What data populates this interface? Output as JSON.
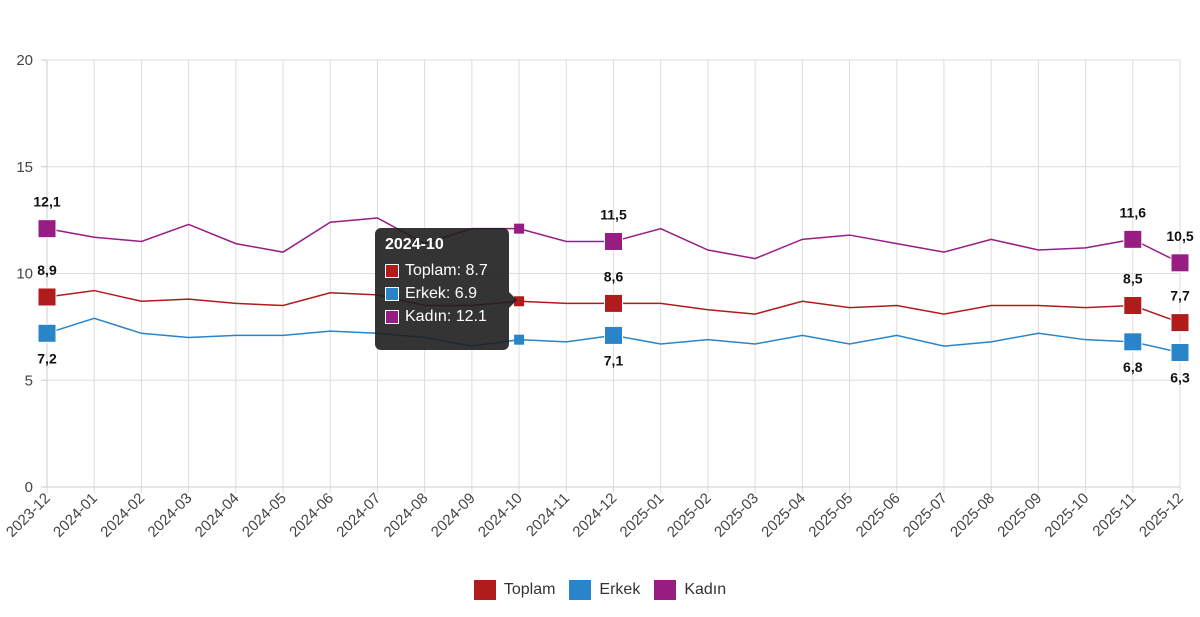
{
  "chart_data": {
    "type": "line",
    "title": "",
    "xlabel": "",
    "ylabel": "",
    "ylim": [
      0,
      20
    ],
    "yticks": [
      "0",
      "5",
      "10",
      "15",
      "20"
    ],
    "grid": true,
    "legend_position": "bottom",
    "categories": [
      "2023-12",
      "2024-01",
      "2024-02",
      "2024-03",
      "2024-04",
      "2024-05",
      "2024-06",
      "2024-07",
      "2024-08",
      "2024-09",
      "2024-10",
      "2024-11",
      "2024-12",
      "2025-01",
      "2025-02",
      "2025-03",
      "2025-04",
      "2025-05",
      "2025-06",
      "2025-07",
      "2025-08",
      "2025-09",
      "2025-10",
      "2025-11",
      "2025-12"
    ],
    "series": [
      {
        "name": "Toplam",
        "color": "#b01c1c",
        "values": [
          8.9,
          9.2,
          8.7,
          8.8,
          8.6,
          8.5,
          9.1,
          9.0,
          8.5,
          8.5,
          8.7,
          8.6,
          8.6,
          8.6,
          8.3,
          8.1,
          8.7,
          8.4,
          8.5,
          8.1,
          8.5,
          8.5,
          8.4,
          8.5,
          7.7
        ]
      },
      {
        "name": "Erkek",
        "color": "#2a84c9",
        "values": [
          7.2,
          7.9,
          7.2,
          7.0,
          7.1,
          7.1,
          7.3,
          7.2,
          7.0,
          6.6,
          6.9,
          6.8,
          7.1,
          6.7,
          6.9,
          6.7,
          7.1,
          6.7,
          7.1,
          6.6,
          6.8,
          7.2,
          6.9,
          6.8,
          6.3
        ]
      },
      {
        "name": "Kadın",
        "color": "#981d82",
        "values": [
          12.1,
          11.7,
          11.5,
          12.3,
          11.4,
          11.0,
          12.4,
          12.6,
          11.4,
          12.1,
          12.1,
          11.5,
          11.5,
          12.1,
          11.1,
          10.7,
          11.6,
          11.8,
          11.4,
          11.0,
          11.6,
          11.1,
          11.2,
          11.6,
          10.5
        ]
      }
    ],
    "labeled_indices": [
      0,
      12,
      23,
      24
    ],
    "data_labels": {
      "Toplam": {
        "0": "8,9",
        "12": "8,6",
        "23": "8,5",
        "24": "7,7"
      },
      "Erkek": {
        "0": "7,2",
        "12": "7,1",
        "23": "6,8",
        "24": "6,3"
      },
      "Kadın": {
        "0": "12,1",
        "12": "11,5",
        "23": "11,6",
        "24": "10,5"
      }
    }
  },
  "tooltip": {
    "title": "2024-10",
    "rows": [
      {
        "label": "Toplam: 8.7",
        "color": "#b01c1c"
      },
      {
        "label": "Erkek: 6.9",
        "color": "#2a84c9"
      },
      {
        "label": "Kadın: 12.1",
        "color": "#981d82"
      }
    ]
  },
  "legend": [
    {
      "label": "Toplam",
      "color": "#b01c1c"
    },
    {
      "label": "Erkek",
      "color": "#2a84c9"
    },
    {
      "label": "Kadın",
      "color": "#981d82"
    }
  ]
}
